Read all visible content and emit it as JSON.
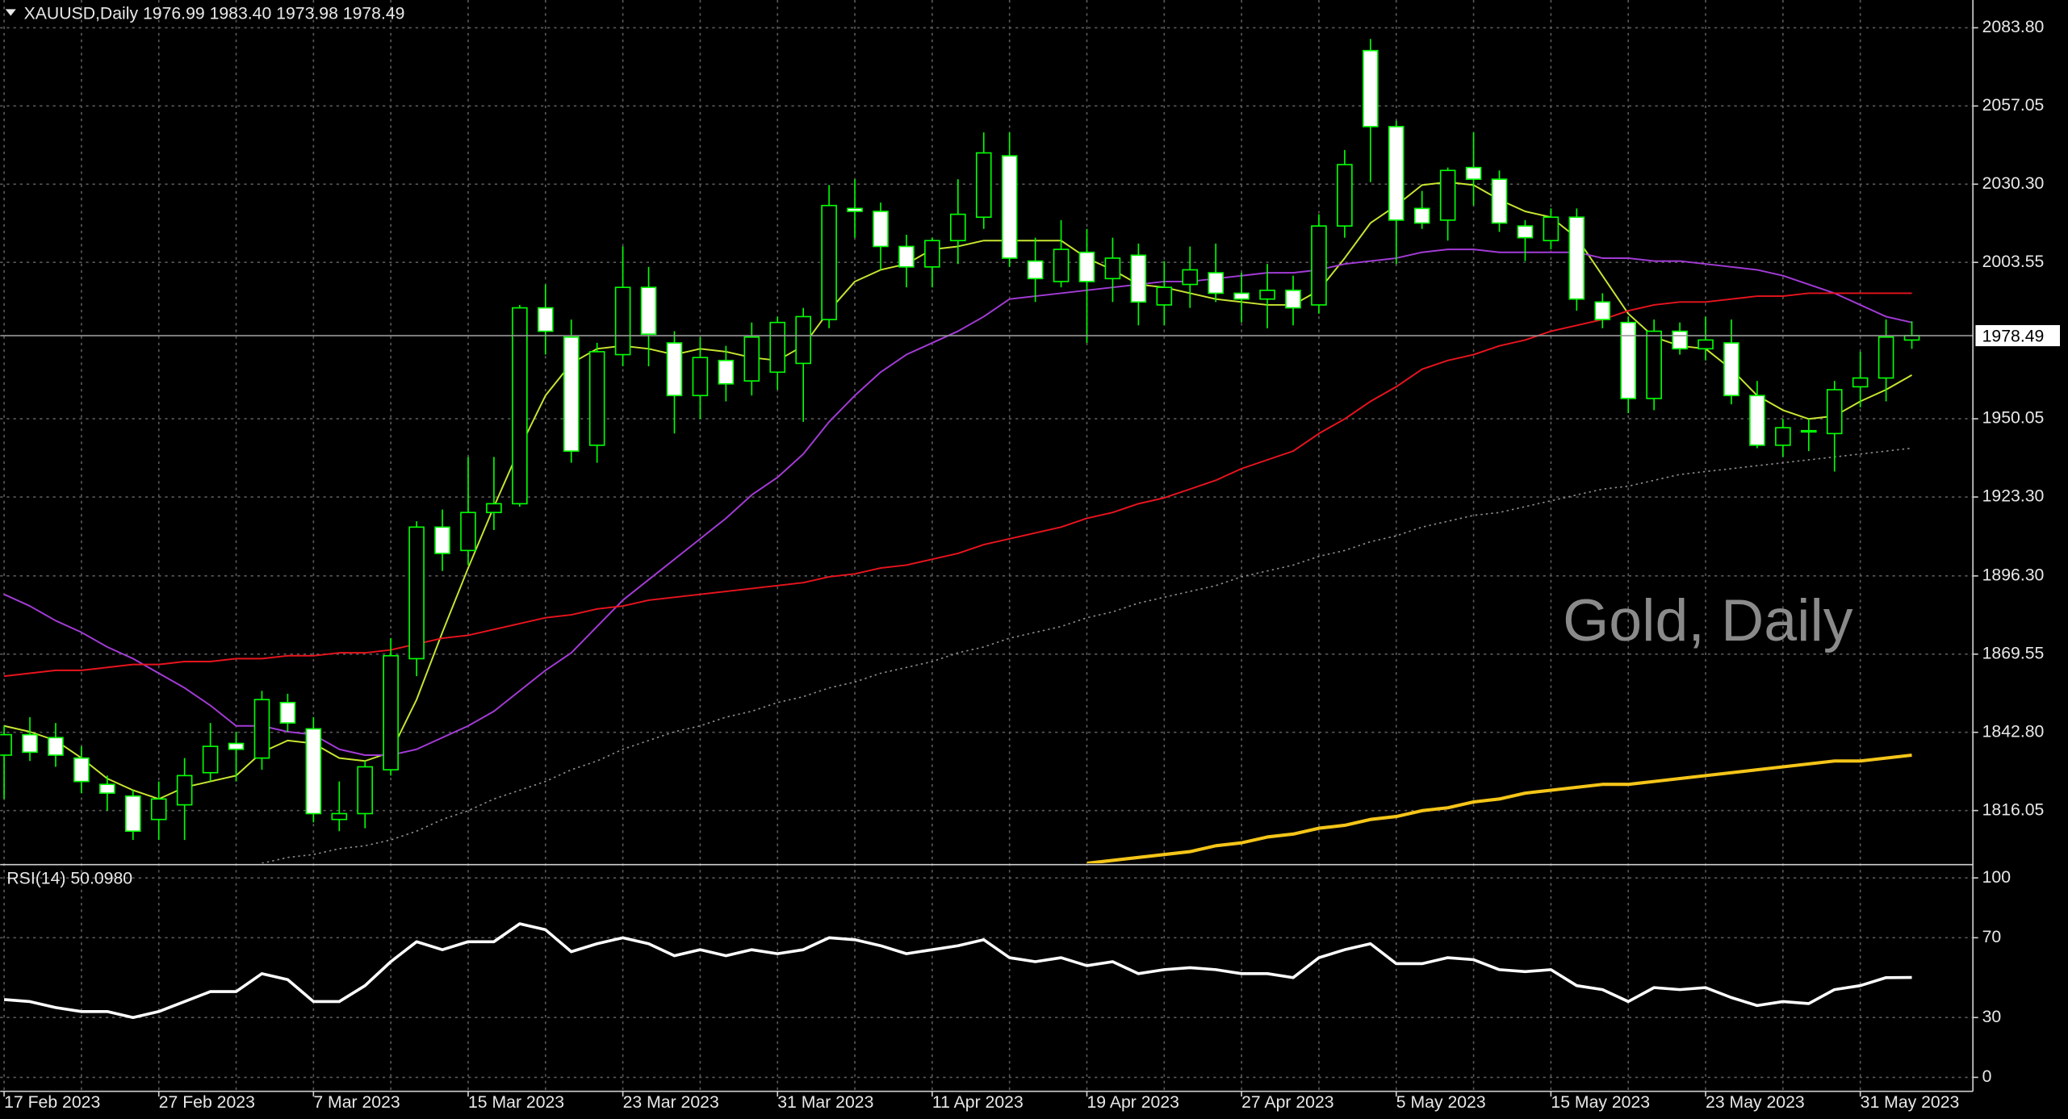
{
  "chart_data": [
    {
      "type": "candlestick",
      "title": "XAUUSD,Daily  1976.99 1983.40 1973.98 1978.49",
      "watermark": "Gold, Daily",
      "categories": [
        "17 Feb 2023",
        null,
        null,
        null,
        null,
        null,
        "27 Feb 2023",
        null,
        null,
        null,
        null,
        null,
        "7 Mar 2023",
        null,
        null,
        null,
        null,
        null,
        "15 Mar 2023",
        null,
        null,
        null,
        null,
        null,
        "23 Mar 2023",
        null,
        null,
        null,
        null,
        null,
        "31 Mar 2023",
        null,
        null,
        null,
        null,
        null,
        "11 Apr 2023",
        null,
        null,
        null,
        null,
        null,
        "19 Apr 2023",
        null,
        null,
        null,
        null,
        null,
        "27 Apr 2023",
        null,
        null,
        null,
        null,
        null,
        "5 May 2023",
        null,
        null,
        null,
        null,
        null,
        "15 May 2023",
        null,
        null,
        null,
        null,
        null,
        "23 May 2023",
        null,
        null,
        null,
        null,
        null,
        "31 May 2023",
        null,
        null
      ],
      "open": [
        1835,
        1842,
        1841,
        1834,
        1825,
        1821,
        1813,
        1818,
        1829,
        1839,
        1834,
        1853,
        1844,
        1813,
        1815,
        1830,
        1868,
        1913,
        1905,
        1918,
        1921,
        1988,
        1978,
        1941,
        1972,
        1995,
        1976,
        1958,
        1970,
        1963,
        1966,
        1969,
        1984,
        2022,
        2021,
        2009,
        2002,
        2011,
        2019,
        2040,
        2004,
        1997,
        2007,
        1998,
        2006,
        1989,
        1996,
        2000,
        1993,
        1991,
        1994,
        1989,
        2016,
        2076,
        2050,
        2022,
        2018,
        2036,
        2032,
        2016,
        2011,
        2019,
        1990,
        1983,
        1957,
        1980,
        1974,
        1976,
        1958,
        1941,
        1946,
        1945,
        1961,
        1964,
        1976.99
      ],
      "high": [
        1845,
        1848,
        1846,
        1838,
        1828,
        1823,
        1826,
        1834,
        1846,
        1843,
        1857,
        1856,
        1848,
        1826,
        1833,
        1875,
        1915,
        1919,
        1937,
        1937,
        1989,
        1996,
        1984,
        1976,
        2009,
        2002,
        1980,
        1978,
        1975,
        1983,
        1985,
        1988,
        2030,
        2032,
        2024,
        2013,
        2012,
        2032,
        2048,
        2048,
        2012,
        2018,
        2015,
        2012,
        2010,
        2004,
        2009,
        2010,
        2000,
        2003,
        1999,
        2020,
        2042,
        2080,
        2052,
        2028,
        2036,
        2048,
        2035,
        2018,
        2022,
        2022,
        1993,
        1985,
        1984,
        1983,
        1985,
        1984,
        1963,
        1950,
        1950,
        1963,
        1973,
        1984,
        1983.4
      ],
      "low": [
        1820,
        1833,
        1831,
        1822,
        1816,
        1806,
        1806,
        1806,
        1826,
        1826,
        1830,
        1843,
        1812,
        1809,
        1810,
        1828,
        1862,
        1898,
        1900,
        1912,
        1920,
        1972,
        1935,
        1935,
        1968,
        1968,
        1945,
        1950,
        1956,
        1958,
        1960,
        1949,
        1981,
        2012,
        2001,
        1995,
        1995,
        2003,
        2015,
        2002,
        1990,
        1995,
        1976,
        1990,
        1982,
        1982,
        1988,
        1990,
        1983,
        1981,
        1982,
        1986,
        2012,
        2031,
        2003,
        2015,
        2011,
        2023,
        2014,
        2004,
        2008,
        1987,
        1981,
        1952,
        1953,
        1972,
        1970,
        1955,
        1940,
        1937,
        1939,
        1932,
        1954,
        1956,
        1973.98
      ],
      "close": [
        1842,
        1836,
        1835,
        1826,
        1822,
        1809,
        1820,
        1828,
        1838,
        1837,
        1854,
        1846,
        1815,
        1815,
        1831,
        1869,
        1913,
        1904,
        1918,
        1921,
        1988,
        1980,
        1939,
        1973,
        1995,
        1979,
        1958,
        1971,
        1962,
        1978,
        1983,
        1985,
        2023,
        2021,
        2009,
        2002,
        2011,
        2020,
        2041,
        2005,
        1998,
        2008,
        1997,
        2005,
        1990,
        1995,
        2001,
        1993,
        1991,
        1994,
        1988,
        2016,
        2037,
        2050,
        2018,
        2017,
        2035,
        2032,
        2017,
        2012,
        2019,
        1991,
        1984,
        1957,
        1980,
        1974,
        1977,
        1958,
        1941,
        1947,
        1946,
        1960,
        1964,
        1978,
        1978.49
      ],
      "up_color": "#00ff00",
      "down_color": "#ffffff",
      "overlays": [
        {
          "color": "#c8e632",
          "values": [
            1845,
            1843,
            1840,
            1834,
            1827,
            1823,
            1820,
            1824,
            1826,
            1828,
            1836,
            1840,
            1839,
            1834,
            1833,
            1836,
            1854,
            1877,
            1899,
            1920,
            1940,
            1958,
            1969,
            1974,
            1975,
            1974,
            1972,
            1974,
            1973,
            1971,
            1970,
            1975,
            1987,
            1997,
            2001,
            2003,
            2008,
            2009,
            2011,
            2011,
            2011,
            2011,
            2005,
            2001,
            1996,
            1995,
            1993,
            1991,
            1990,
            1989,
            1989,
            1994,
            2005,
            2017,
            2023,
            2030,
            2031,
            2030,
            2025,
            2021,
            2019,
            2012,
            1999,
            1986,
            1978,
            1975,
            1974,
            1967,
            1958,
            1953,
            1950,
            1951,
            1956,
            1960,
            1965
          ]
        },
        {
          "color": "#a33bd6",
          "values": [
            1890,
            1886,
            1881,
            1877,
            1872,
            1868,
            1863,
            1858,
            1852,
            1845,
            1845,
            1843,
            1842,
            1837,
            1835,
            1835,
            1837,
            1841,
            1845,
            1850,
            1857,
            1864,
            1870,
            1879,
            1888,
            1895,
            1902,
            1909,
            1916,
            1924,
            1930,
            1938,
            1949,
            1958,
            1966,
            1972,
            1976,
            1980,
            1985,
            1991,
            1992,
            1993,
            1994,
            1995,
            1996,
            1997,
            1997,
            1998,
            1999,
            2000,
            2000,
            2001,
            2003,
            2004,
            2005,
            2007,
            2008,
            2008,
            2007,
            2007,
            2007,
            2007,
            2005,
            2005,
            2004,
            2004,
            2003,
            2002,
            2001,
            1999,
            1996,
            1993,
            1989,
            1985,
            1983
          ]
        },
        {
          "color": "#e8141e",
          "values": [
            1862,
            1863,
            1864,
            1864,
            1865,
            1866,
            1866,
            1867,
            1867,
            1868,
            1868,
            1869,
            1869,
            1870,
            1870,
            1871,
            1873,
            1875,
            1876,
            1878,
            1880,
            1882,
            1883,
            1885,
            1886,
            1888,
            1889,
            1890,
            1891,
            1892,
            1893,
            1894,
            1896,
            1897,
            1899,
            1900,
            1902,
            1904,
            1907,
            1909,
            1911,
            1913,
            1916,
            1918,
            1921,
            1923,
            1926,
            1929,
            1933,
            1936,
            1939,
            1945,
            1950,
            1956,
            1961,
            1967,
            1970,
            1972,
            1975,
            1977,
            1980,
            1982,
            1984,
            1987,
            1989,
            1990,
            1990,
            1991,
            1992,
            1992,
            1993,
            1993,
            1993,
            1993,
            1993
          ]
        },
        {
          "color": "#8c8c8c",
          "style": "dotted",
          "values": [
            null,
            null,
            null,
            null,
            null,
            null,
            null,
            null,
            null,
            null,
            1798,
            1800,
            1801,
            1803,
            1804,
            1806,
            1809,
            1813,
            1816,
            1820,
            1823,
            1826,
            1830,
            1833,
            1837,
            1840,
            1843,
            1845,
            1848,
            1850,
            1853,
            1855,
            1858,
            1860,
            1863,
            1865,
            1867,
            1870,
            1872,
            1875,
            1877,
            1879,
            1882,
            1884,
            1887,
            1889,
            1891,
            1893,
            1896,
            1898,
            1900,
            1903,
            1905,
            1908,
            1910,
            1913,
            1915,
            1917,
            1918,
            1920,
            1922,
            1924,
            1926,
            1927,
            1929,
            1931,
            1932,
            1933,
            1934,
            1935,
            1936,
            1937,
            1938,
            1939,
            1940
          ]
        },
        {
          "color": "#f5c518",
          "values": [
            null,
            null,
            null,
            null,
            null,
            null,
            null,
            null,
            null,
            null,
            null,
            null,
            null,
            null,
            null,
            null,
            null,
            null,
            null,
            null,
            null,
            null,
            null,
            null,
            null,
            null,
            null,
            null,
            null,
            null,
            null,
            null,
            null,
            null,
            null,
            null,
            null,
            null,
            null,
            null,
            null,
            null,
            1798,
            1799,
            1800,
            1801,
            1802,
            1804,
            1805,
            1807,
            1808,
            1810,
            1811,
            1813,
            1814,
            1816,
            1817,
            1819,
            1820,
            1822,
            1823,
            1824,
            1825,
            1825,
            1826,
            1827,
            1828,
            1829,
            1830,
            1831,
            1832,
            1833,
            1833,
            1834,
            1835
          ]
        }
      ],
      "ylim": [
        1798.0,
        2093.3
      ],
      "yticks": [
        {
          "value": 2083.8,
          "label": "2083.80"
        },
        {
          "value": 2057.05,
          "label": "2057.05"
        },
        {
          "value": 2030.3,
          "label": "2030.30"
        },
        {
          "value": 2003.55,
          "label": "2003.55"
        },
        {
          "value": 1950.05,
          "label": "1950.05"
        },
        {
          "value": 1923.3,
          "label": "1923.30"
        },
        {
          "value": 1896.3,
          "label": "1896.30"
        },
        {
          "value": 1869.55,
          "label": "1869.55"
        },
        {
          "value": 1842.8,
          "label": "1842.80"
        },
        {
          "value": 1816.05,
          "label": "1816.05"
        }
      ],
      "grid": true
    },
    {
      "type": "line",
      "title": "RSI(14) 50.0980",
      "color": "#ffffff",
      "values": [
        39,
        38,
        35,
        33,
        33,
        30,
        33,
        38,
        43,
        43,
        52,
        49,
        38,
        38,
        46,
        58,
        68,
        64,
        68,
        68,
        77,
        74,
        63,
        67,
        70,
        67,
        61,
        64,
        61,
        64,
        62,
        64,
        70,
        69,
        66,
        62,
        64,
        66,
        69,
        60,
        58,
        60,
        56,
        58,
        52,
        54,
        55,
        54,
        52,
        52,
        50,
        60,
        64,
        67,
        57,
        57,
        60,
        59,
        54,
        53,
        54,
        46,
        44,
        38,
        45,
        44,
        45,
        40,
        36,
        38,
        37,
        44,
        46,
        50,
        50.098
      ],
      "ylim": [
        -7,
        106
      ],
      "yticks": [
        0,
        30,
        70,
        100
      ],
      "grid": true
    }
  ]
}
